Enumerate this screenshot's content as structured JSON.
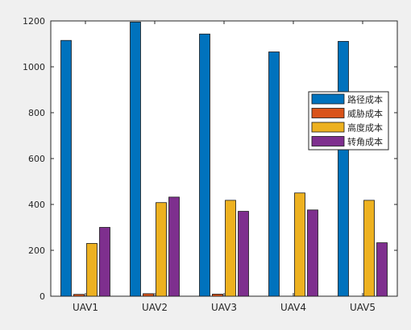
{
  "chart_data": {
    "type": "bar",
    "categories": [
      "UAV1",
      "UAV2",
      "UAV3",
      "UAV4",
      "UAV5"
    ],
    "series": [
      {
        "name": "路径成本",
        "color": "#0072bd",
        "values": [
          1115,
          1195,
          1143,
          1065,
          1111
        ]
      },
      {
        "name": "威胁成本",
        "color": "#d95319",
        "values": [
          8,
          11,
          9,
          0,
          0
        ]
      },
      {
        "name": "高度成本",
        "color": "#edb120",
        "values": [
          230,
          408,
          418,
          450,
          418
        ]
      },
      {
        "name": "转角成本",
        "color": "#7e2f8e",
        "values": [
          300,
          432,
          370,
          376,
          233
        ]
      }
    ],
    "ylim": [
      0,
      1200
    ],
    "yticks": [
      0,
      200,
      400,
      600,
      800,
      1000,
      1200
    ],
    "title": "",
    "xlabel": "",
    "ylabel": "",
    "grid": false,
    "legend_position": "right"
  }
}
